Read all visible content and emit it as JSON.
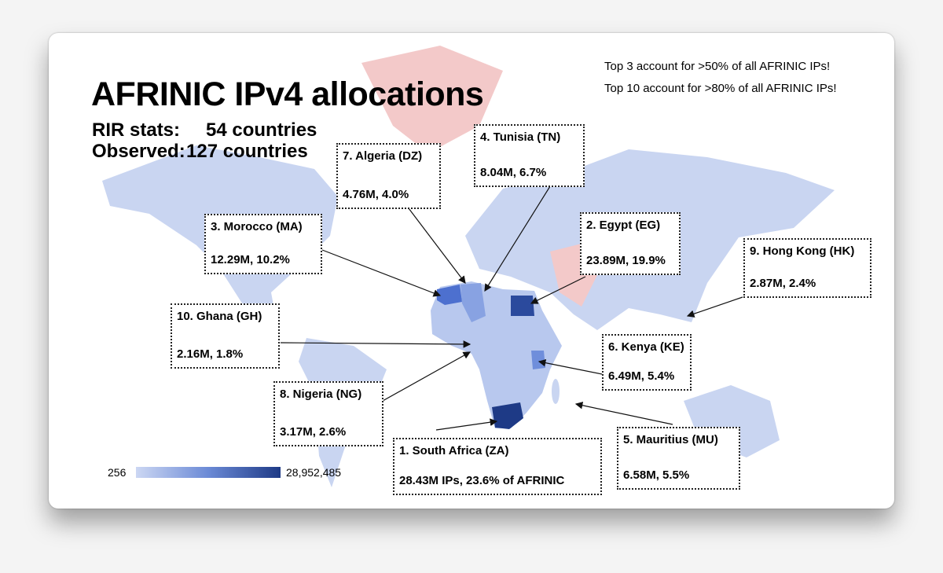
{
  "title": "AFRINIC IPv4 allocations",
  "stats": [
    {
      "label": "RIR stats:",
      "value": "54 countries"
    },
    {
      "label": "Observed:",
      "value": "127 countries"
    }
  ],
  "notes": [
    "Top 3 account for >50% of all AFRINIC IPs!",
    "Top 10 account for >80% of all AFRINIC IPs!"
  ],
  "callouts": [
    {
      "title": "1. South Africa (ZA)",
      "detail": "28.43M IPs, 23.6% of AFRINIC"
    },
    {
      "title": "2. Egypt (EG)",
      "detail": "23.89M, 19.9%"
    },
    {
      "title": "3. Morocco (MA)",
      "detail": "12.29M, 10.2%"
    },
    {
      "title": "4. Tunisia (TN)",
      "detail": "8.04M, 6.7%"
    },
    {
      "title": "5. Mauritius (MU)",
      "detail": "6.58M, 5.5%"
    },
    {
      "title": "6. Kenya (KE)",
      "detail": "6.49M, 5.4%"
    },
    {
      "title": "7. Algeria (DZ)",
      "detail": "4.76M, 4.0%"
    },
    {
      "title": "8. Nigeria (NG)",
      "detail": "3.17M, 2.6%"
    },
    {
      "title": "9. Hong Kong (HK)",
      "detail": "2.87M, 2.4%"
    },
    {
      "title": "10. Ghana (GH)",
      "detail": "2.16M, 1.8%"
    }
  ],
  "legend": {
    "min": "256",
    "max": "28,952,485"
  }
}
